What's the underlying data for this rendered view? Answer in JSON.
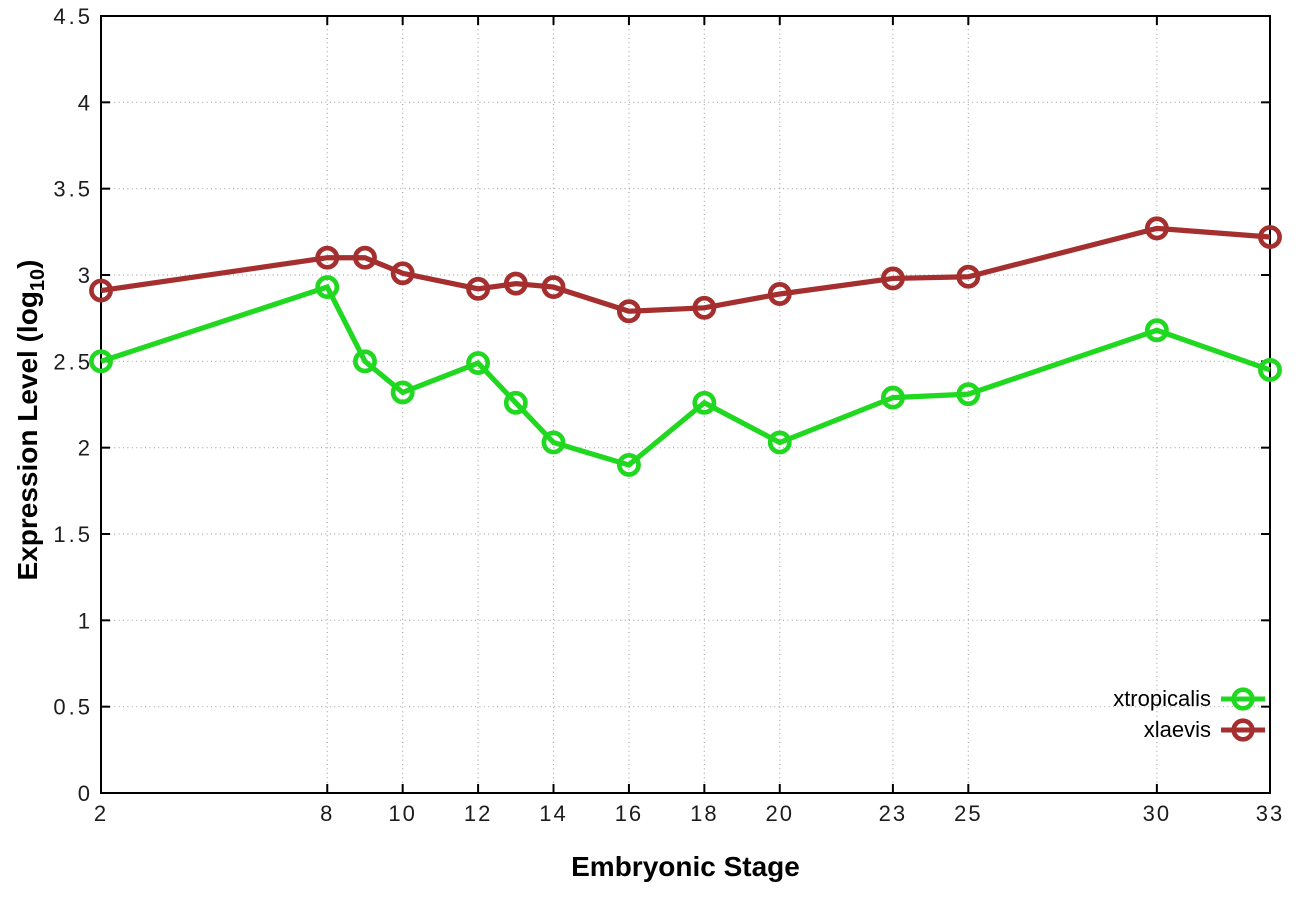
{
  "chart_data": {
    "type": "line",
    "title": "",
    "xlabel": "Embryonic Stage",
    "ylabel": "Expression Level (log10)",
    "ylabel_parts": {
      "pre": "Expression Level (log",
      "sub": "10",
      "post": ")"
    },
    "x": [
      2,
      8,
      9,
      10,
      12,
      13,
      14,
      16,
      18,
      20,
      23,
      25,
      30,
      33
    ],
    "series": [
      {
        "name": "xtropicalis",
        "color": "#21d821",
        "marker": "open-circle",
        "values": [
          2.5,
          2.93,
          2.5,
          2.32,
          2.49,
          2.26,
          2.03,
          1.9,
          2.26,
          2.03,
          2.29,
          2.31,
          2.68,
          2.45
        ]
      },
      {
        "name": "xlaevis",
        "color": "#a52f2f",
        "marker": "open-circle",
        "values": [
          2.91,
          3.1,
          3.1,
          3.01,
          2.92,
          2.95,
          2.93,
          2.79,
          2.81,
          2.89,
          2.98,
          2.99,
          3.27,
          3.22
        ]
      }
    ],
    "xlim": [
      2,
      33
    ],
    "ylim": [
      0,
      4.5
    ],
    "xtick_values": [
      2,
      8,
      10,
      12,
      14,
      16,
      18,
      20,
      23,
      25,
      30,
      33
    ],
    "xtick_labels": [
      "2",
      "8",
      "10",
      "12",
      "14",
      "16",
      "18",
      "20",
      "23",
      "25",
      "30",
      "33"
    ],
    "ytick_values": [
      0,
      0.5,
      1,
      1.5,
      2,
      2.5,
      3,
      3.5,
      4,
      4.5
    ],
    "ytick_labels": [
      "0",
      "0.5",
      "1",
      "1.5",
      "2",
      "2.5",
      "3",
      "3.5",
      "4",
      "4.5"
    ],
    "grid": true,
    "grid_style": "dotted",
    "legend_position": "bottom-right-inside",
    "colors": {
      "axis": "#000000",
      "grid": "#a8a8a8",
      "text": "#1c1c1c",
      "background": "#ffffff"
    }
  }
}
